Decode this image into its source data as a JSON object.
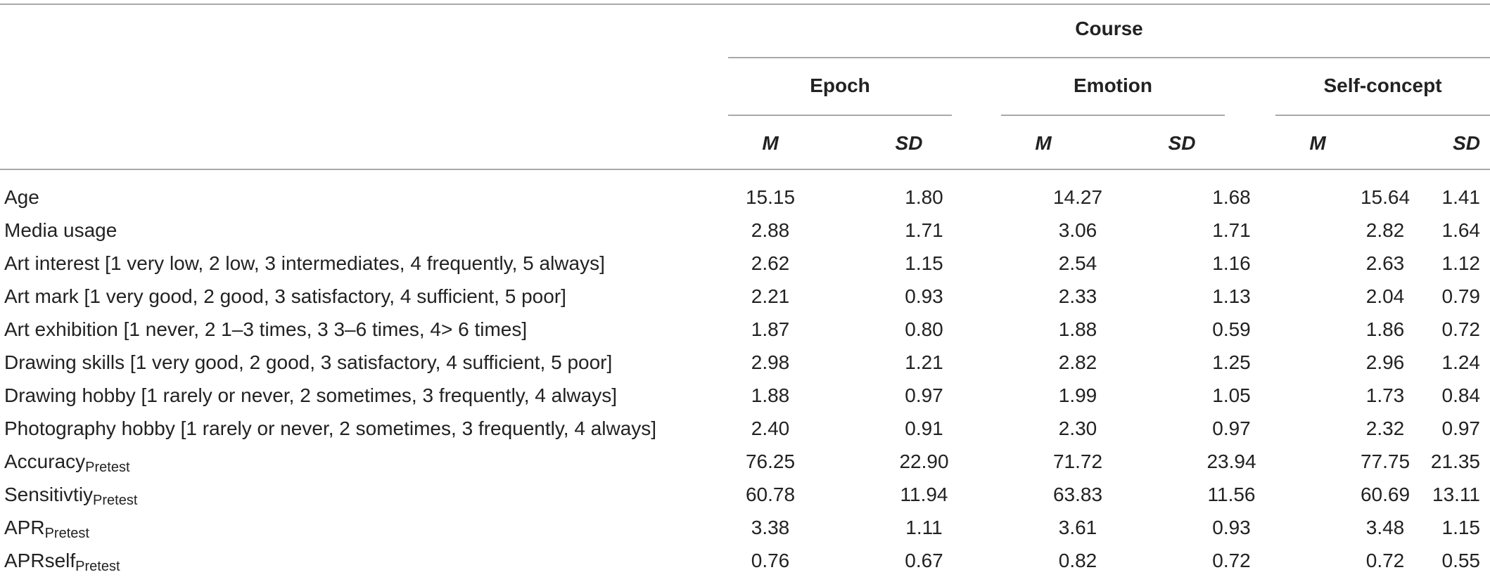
{
  "table": {
    "group_header": "Course",
    "conditions": [
      "Epoch",
      "Emotion",
      "Self-concept"
    ],
    "stat_headers": [
      "M",
      "SD",
      "M",
      "SD",
      "M",
      "SD"
    ],
    "rows": [
      {
        "label": "Age",
        "sub": "",
        "values": [
          "15.15",
          "1.80",
          "14.27",
          "1.68",
          "15.64",
          "1.41"
        ]
      },
      {
        "label": "Media usage",
        "sub": "",
        "values": [
          "2.88",
          "1.71",
          "3.06",
          "1.71",
          "2.82",
          "1.64"
        ]
      },
      {
        "label": "Art interest [1 very low, 2 low, 3 intermediates, 4 frequently, 5 always]",
        "sub": "",
        "values": [
          "2.62",
          "1.15",
          "2.54",
          "1.16",
          "2.63",
          "1.12"
        ]
      },
      {
        "label": "Art mark [1 very good, 2 good, 3 satisfactory, 4 sufficient, 5 poor]",
        "sub": "",
        "values": [
          "2.21",
          "0.93",
          "2.33",
          "1.13",
          "2.04",
          "0.79"
        ]
      },
      {
        "label": "Art exhibition [1 never, 2 1–3 times, 3 3–6 times, 4> 6 times]",
        "sub": "",
        "values": [
          "1.87",
          "0.80",
          "1.88",
          "0.59",
          "1.86",
          "0.72"
        ]
      },
      {
        "label": "Drawing skills [1 very good, 2 good, 3 satisfactory, 4 sufficient, 5 poor]",
        "sub": "",
        "values": [
          "2.98",
          "1.21",
          "2.82",
          "1.25",
          "2.96",
          "1.24"
        ]
      },
      {
        "label": "Drawing hobby [1 rarely or never, 2 sometimes, 3 frequently, 4 always]",
        "sub": "",
        "values": [
          "1.88",
          "0.97",
          "1.99",
          "1.05",
          "1.73",
          "0.84"
        ]
      },
      {
        "label": "Photography hobby [1 rarely or never, 2 sometimes, 3 frequently, 4 always]",
        "sub": "",
        "values": [
          "2.40",
          "0.91",
          "2.30",
          "0.97",
          "2.32",
          "0.97"
        ]
      },
      {
        "label": "Accuracy",
        "sub": "Pretest",
        "values": [
          "76.25",
          "22.90",
          "71.72",
          "23.94",
          "77.75",
          "21.35"
        ]
      },
      {
        "label": "Sensitivtiy",
        "sub": "Pretest",
        "values": [
          "60.78",
          "11.94",
          "63.83",
          "11.56",
          "60.69",
          "13.11"
        ]
      },
      {
        "label": "APR",
        "sub": "Pretest",
        "values": [
          "3.38",
          "1.11",
          "3.61",
          "0.93",
          "3.48",
          "1.15"
        ]
      },
      {
        "label": "APRself",
        "sub": "Pretest",
        "values": [
          "0.76",
          "0.67",
          "0.82",
          "0.72",
          "0.72",
          "0.55"
        ]
      }
    ]
  }
}
